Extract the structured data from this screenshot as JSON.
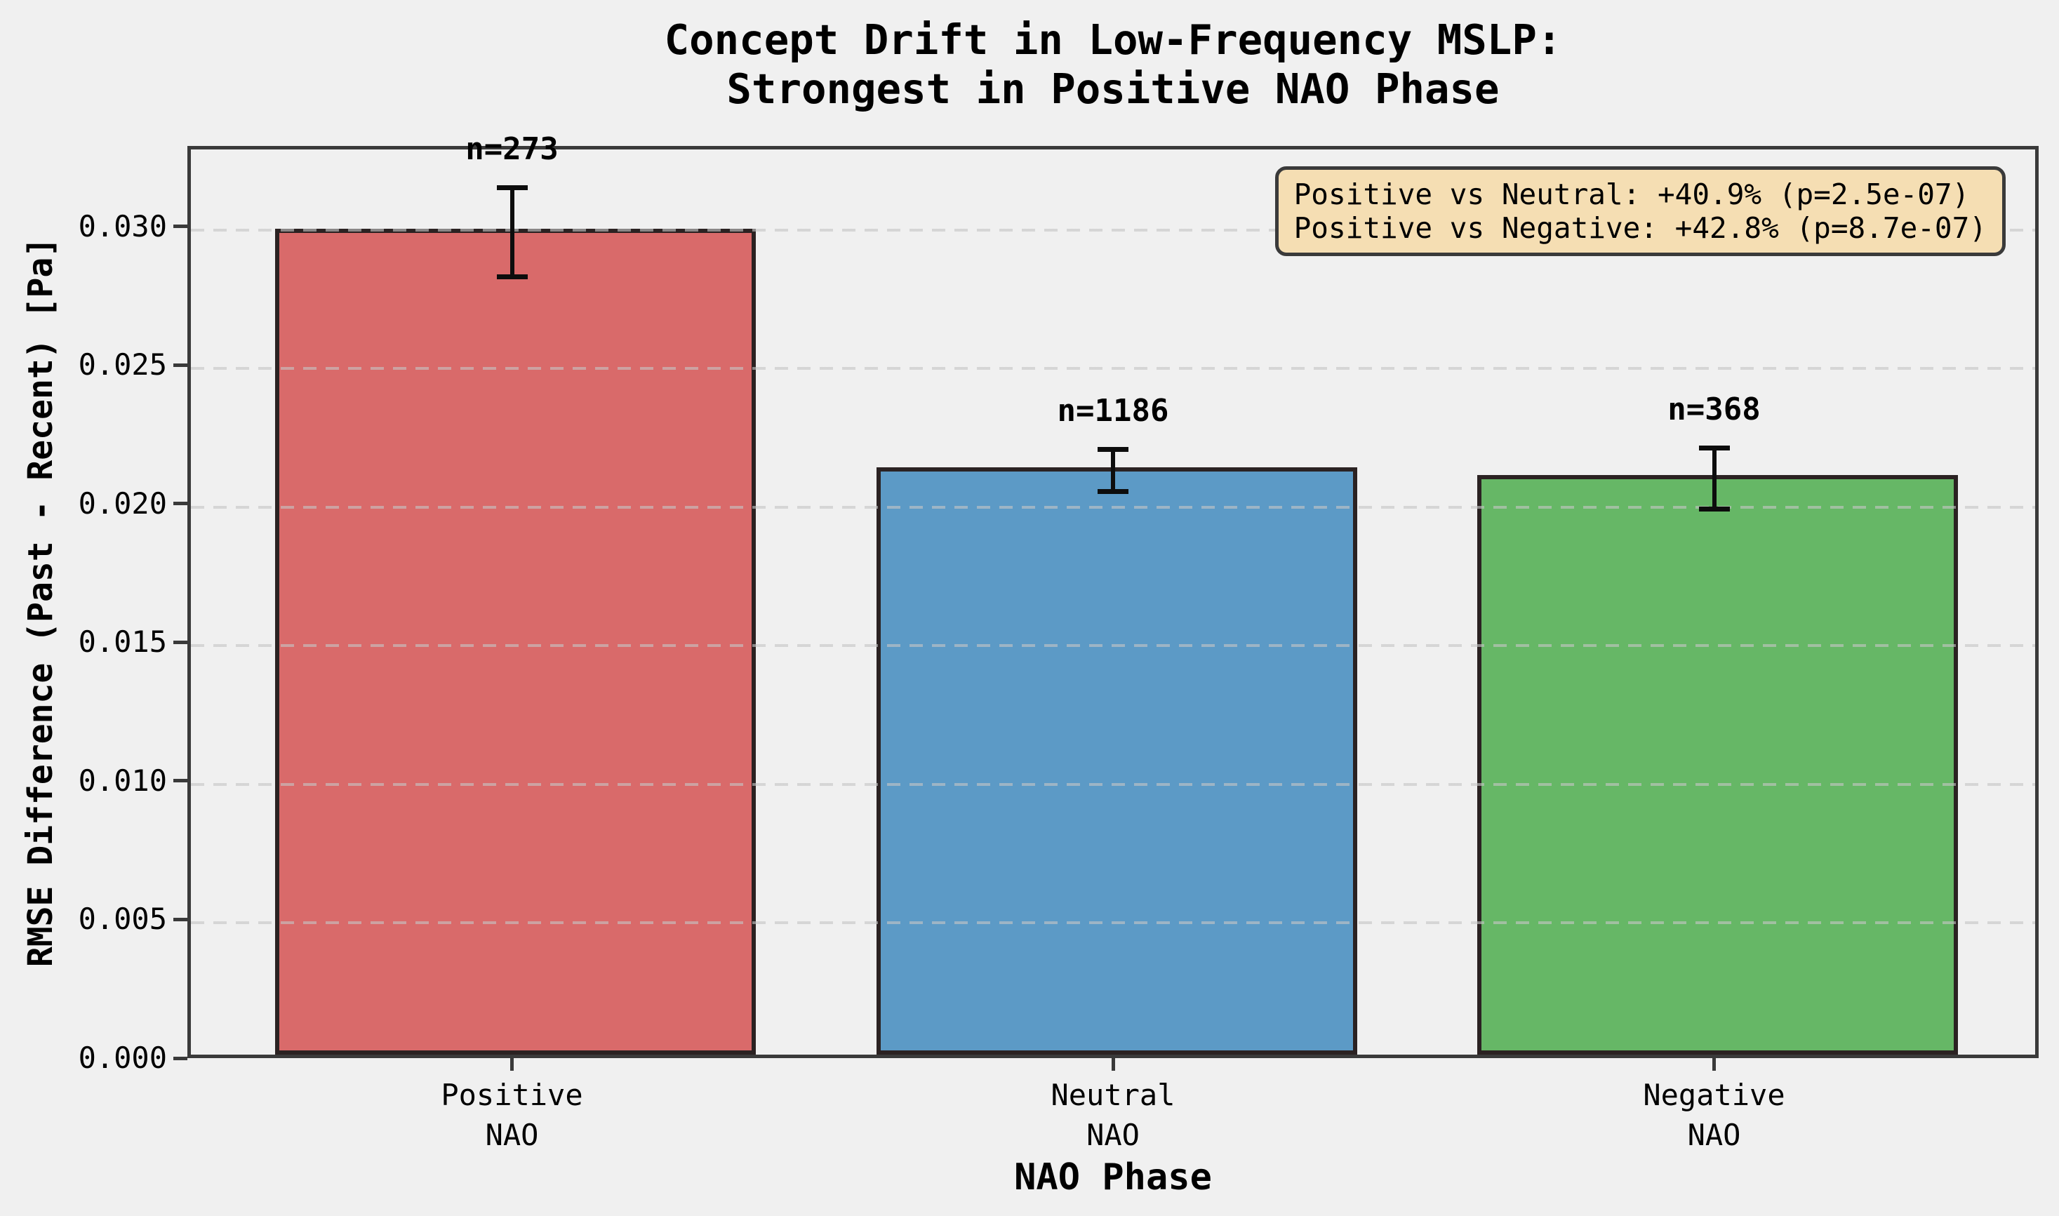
{
  "title": {
    "line1": "Concept Drift in Low-Frequency MSLP:",
    "line2": "Strongest in Positive NAO Phase"
  },
  "chart_data": {
    "type": "bar",
    "title": "Concept Drift in Low-Frequency MSLP:\nStrongest in Positive NAO Phase",
    "xlabel": "NAO Phase",
    "ylabel": "RMSE Difference (Past - Recent) [Pa]",
    "categories": [
      "Positive\nNAO",
      "Neutral\nNAO",
      "Negative\nNAO"
    ],
    "values": [
      0.0298,
      0.0212,
      0.0209
    ],
    "errors": [
      0.0016,
      0.00075,
      0.0011
    ],
    "bar_labels": [
      "n=273",
      "n=1186",
      "n=368"
    ],
    "bar_colors": [
      "#D96A6A",
      "#5C9AC6",
      "#66B766"
    ],
    "bar_edge_color": "#2b2222",
    "error_bar_color": "#0d0d0d",
    "ylim": [
      0,
      0.03291
    ],
    "yticks": [
      0.0,
      0.005,
      0.01,
      0.015,
      0.02,
      0.025,
      0.03
    ],
    "ytick_labels": [
      "0.000",
      "0.005",
      "0.010",
      "0.015",
      "0.020",
      "0.025",
      "0.030"
    ],
    "grid": "horizontal dashed, drawn above bars",
    "legend": "none",
    "background_color": "#F0F0F0",
    "annotation_box": {
      "line1": "Positive vs Neutral: +40.9% (p=2.5e-07)",
      "line2": "Positive vs Negative: +42.8% (p=8.7e-07)",
      "bg_color": "#F5DEB3",
      "border_color": "#3a3a3a"
    }
  }
}
